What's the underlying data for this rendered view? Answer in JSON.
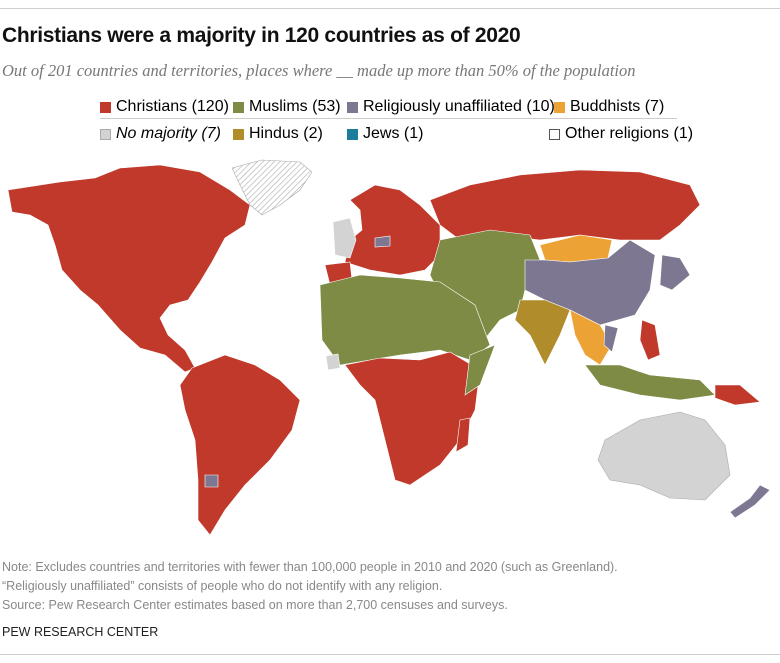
{
  "title": "Christians were a majority in 120 countries as of 2020",
  "subtitle": "Out of 201 countries and territories, places where __ made up more than 50% of the population",
  "legend": [
    {
      "label": "Christians (120)",
      "color": "#c0392b"
    },
    {
      "label": "Muslims (53)",
      "color": "#7d8b45"
    },
    {
      "label": "Religiously unaffiliated (10)",
      "color": "#7e7791"
    },
    {
      "label": "Buddhists (7)",
      "color": "#eda235"
    },
    {
      "label": "No majority (7)",
      "color": "#d3d3d3"
    },
    {
      "label": "Hindus (2)",
      "color": "#b08c2a"
    },
    {
      "label": "Jews (1)",
      "color": "#1b7d9b"
    },
    {
      "label": "Other religions (1)",
      "color": "#ffffff"
    }
  ],
  "notes": [
    "Note: Excludes countries and territories with fewer than 100,000 people in 2010 and 2020 (such as Greenland).",
    "“Religiously unaffiliated” consists of people who do not identify with any religion.",
    "Source: Pew Research Center estimates based on more than 2,700 censuses and surveys."
  ],
  "brand": "PEW RESEARCH CENTER"
}
